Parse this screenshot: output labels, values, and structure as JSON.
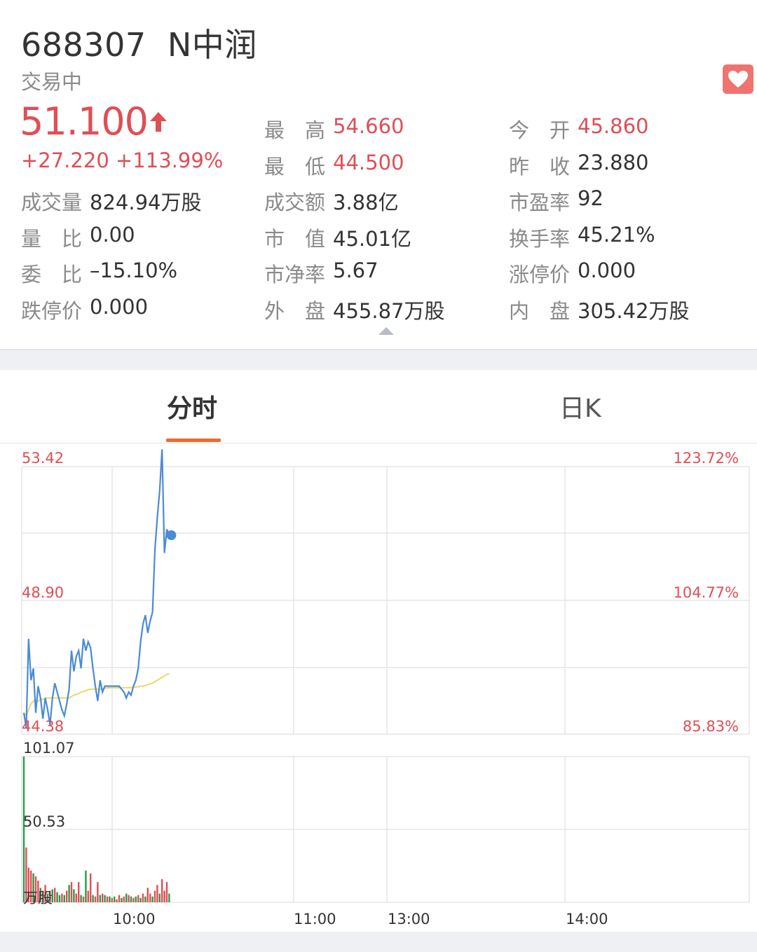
{
  "stock": {
    "code": "688307",
    "name": "N中润",
    "status": "交易中",
    "price": "51.100",
    "change": "+27.220",
    "change_pct": "+113.99%"
  },
  "stats": {
    "high": {
      "label": "最　高",
      "value": "54.660"
    },
    "low": {
      "label": "最　低",
      "value": "44.500"
    },
    "open": {
      "label": "今　开",
      "value": "45.860"
    },
    "prev_close": {
      "label": "昨　收",
      "value": "23.880"
    },
    "volume": {
      "label": "成交量",
      "value": "824.94万股"
    },
    "amount": {
      "label": "成交额",
      "value": "3.88亿"
    },
    "pe": {
      "label": "市盈率",
      "value": "92"
    },
    "vol_ratio": {
      "label": "量　比",
      "value": "0.00"
    },
    "mkt_cap": {
      "label": "市　值",
      "value": "45.01亿"
    },
    "turnover": {
      "label": "换手率",
      "value": "45.21%"
    },
    "bid_ratio": {
      "label": "委　比",
      "value": "–15.10%"
    },
    "pb": {
      "label": "市净率",
      "value": "5.67"
    },
    "limit_up": {
      "label": "涨停价",
      "value": "0.000"
    },
    "limit_down": {
      "label": "跌停价",
      "value": "0.000"
    },
    "outer": {
      "label": "外　盘",
      "value": "455.87万股"
    },
    "inner": {
      "label": "内　盘",
      "value": "305.42万股"
    }
  },
  "tabs": [
    {
      "label": "分时",
      "active": true
    },
    {
      "label": "日K",
      "active": false
    }
  ],
  "colors": {
    "up": "#e04e55",
    "down": "#2a9a4a",
    "price_line": "#4a8bd6",
    "avg_line": "#e9d86a",
    "tab_accent": "#f06a2c"
  },
  "chart_data": {
    "type": "line",
    "price_axis": {
      "top": "53.42",
      "mid": "48.90",
      "bottom": "44.38"
    },
    "pct_axis": {
      "top": "123.72%",
      "mid": "104.77%",
      "bottom": "85.83%"
    },
    "volume_axis": {
      "top": "101.07",
      "mid": "50.53",
      "unit": "万股"
    },
    "x_ticks": [
      "10:00",
      "11:00",
      "13:00",
      "14:00"
    ],
    "ylim": [
      44.38,
      53.42
    ],
    "series": [
      {
        "values": [
          45.1,
          44.6,
          47.6,
          46.2,
          46.6,
          45.1,
          46.0,
          45.6,
          44.9,
          45.6,
          45.2,
          44.7,
          45.6,
          46.1,
          45.8,
          45.5,
          45.2,
          45.0,
          45.4,
          45.9,
          47.2,
          46.5,
          47.0,
          47.2,
          46.6,
          47.6,
          47.2,
          47.5,
          47.3,
          46.6,
          46.0,
          45.5,
          46.2,
          45.8,
          46.0,
          46.0,
          46.0,
          46.0,
          46.0,
          46.0,
          46.0,
          45.9,
          45.8,
          45.6,
          45.8,
          45.7,
          46.0,
          46.2,
          46.6,
          47.5,
          48.1,
          48.4,
          47.8,
          48.2,
          48.5,
          50.6,
          51.7,
          52.6,
          54.0,
          50.5,
          51.3,
          51.1
        ],
        "avg": [
          45.1,
          45.0,
          45.2,
          45.4,
          45.5,
          45.5,
          45.5,
          45.55,
          45.55,
          45.6,
          45.6,
          45.6,
          45.6,
          45.6,
          45.6,
          45.6,
          45.6,
          45.6,
          45.6,
          45.6,
          45.65,
          45.7,
          45.72,
          45.75,
          45.8,
          45.82,
          45.85,
          45.88,
          45.9,
          45.9,
          45.9,
          45.9,
          45.9,
          45.92,
          45.93,
          45.94,
          45.95,
          45.95,
          45.95,
          45.95,
          45.95,
          45.95,
          45.95,
          45.95,
          45.95,
          45.95,
          45.96,
          45.97,
          45.98,
          46.0,
          46.0,
          46.02,
          46.05,
          46.08,
          46.1,
          46.15,
          46.2,
          46.25,
          46.3,
          46.35,
          46.4,
          46.42
        ]
      }
    ],
    "volume": {
      "values": [
        101,
        38,
        24,
        22,
        20,
        18,
        15,
        10,
        8,
        12,
        6,
        8,
        9,
        10,
        7,
        5,
        6,
        5,
        8,
        12,
        14,
        9,
        6,
        14,
        5,
        4,
        22,
        8,
        20,
        5,
        4,
        14,
        5,
        6,
        5,
        4,
        4,
        3,
        4,
        2,
        5,
        3,
        4,
        6,
        5,
        4,
        3,
        4,
        5,
        3,
        6,
        4,
        10,
        6,
        4,
        8,
        12,
        6,
        16,
        8,
        14,
        6
      ],
      "colors": [
        "g",
        "r",
        "r",
        "r",
        "g",
        "r",
        "r",
        "g",
        "r",
        "r",
        "g",
        "r",
        "g",
        "r",
        "g",
        "g",
        "r",
        "g",
        "r",
        "g",
        "r",
        "g",
        "r",
        "r",
        "g",
        "r",
        "g",
        "r",
        "r",
        "g",
        "r",
        "r",
        "g",
        "r",
        "g",
        "r",
        "g",
        "r",
        "g",
        "r",
        "r",
        "g",
        "r",
        "g",
        "r",
        "g",
        "r",
        "g",
        "r",
        "g",
        "r",
        "g",
        "r",
        "r",
        "g",
        "r",
        "r",
        "g",
        "r",
        "r",
        "r",
        "g"
      ]
    }
  }
}
